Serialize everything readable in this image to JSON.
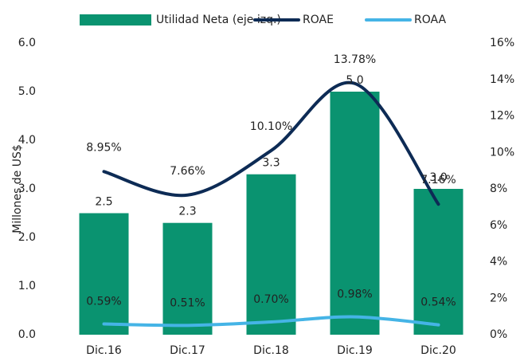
{
  "chart_data": {
    "type": "bar_line",
    "categories": [
      "Dic.16",
      "Dic.17",
      "Dic.18",
      "Dic.19",
      "Dic.20"
    ],
    "ylabel": "Millones de US$",
    "ylim": [
      0,
      6
    ],
    "yticks": [
      {
        "value": 0,
        "label": "0.0"
      },
      {
        "value": 1,
        "label": "1.0"
      },
      {
        "value": 2,
        "label": "2.0"
      },
      {
        "value": 3,
        "label": "3.0"
      },
      {
        "value": 4,
        "label": "4.0"
      },
      {
        "value": 5,
        "label": "5.0"
      },
      {
        "value": 6,
        "label": "6.0"
      }
    ],
    "y2lim": [
      0,
      16
    ],
    "y2ticks": [
      {
        "value": 0,
        "label": "0%"
      },
      {
        "value": 2,
        "label": "2%"
      },
      {
        "value": 4,
        "label": "4%"
      },
      {
        "value": 6,
        "label": "6%"
      },
      {
        "value": 8,
        "label": "8%"
      },
      {
        "value": 10,
        "label": "10%"
      },
      {
        "value": 12,
        "label": "12%"
      },
      {
        "value": 14,
        "label": "14%"
      },
      {
        "value": 16,
        "label": "16%"
      }
    ],
    "legend": "top",
    "series": [
      {
        "name": "Utilidad Neta (eje izq.)",
        "type": "bar",
        "color": "#0a9370",
        "values": [
          2.5,
          2.3,
          3.3,
          5.0,
          3.0
        ],
        "value_labels": [
          "2.5",
          "2.3",
          "3.3",
          "5.0",
          "3.0"
        ]
      },
      {
        "name": "ROAE",
        "type": "line",
        "axis": "y2",
        "color": "#0d2b55",
        "values": [
          8.95,
          7.66,
          10.1,
          13.78,
          7.16
        ],
        "value_labels": [
          "8.95%",
          "7.66%",
          "10.10%",
          "13.78%",
          "7.16%"
        ]
      },
      {
        "name": "ROAA",
        "type": "line",
        "axis": "y2",
        "color": "#45b4e6",
        "values": [
          0.59,
          0.51,
          0.7,
          0.98,
          0.54
        ],
        "value_labels": [
          "0.59%",
          "0.51%",
          "0.70%",
          "0.98%",
          "0.54%"
        ]
      }
    ]
  }
}
